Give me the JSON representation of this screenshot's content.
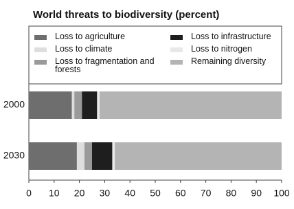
{
  "chart_data": {
    "type": "bar",
    "orientation": "horizontal",
    "stacked": true,
    "title": "World threats to biodiversity (percent)",
    "categories": [
      "2000",
      "2030"
    ],
    "series": [
      {
        "name": "Loss to agriculture",
        "color": "#6e6e6e",
        "values": [
          17,
          19
        ]
      },
      {
        "name": "Loss to climate",
        "color": "#dedede",
        "values": [
          1,
          3
        ]
      },
      {
        "name": "Loss to fragmentation and forests",
        "color": "#9a9a9a",
        "values": [
          3,
          3
        ]
      },
      {
        "name": "Loss to infrastructure",
        "color": "#1e1e1e",
        "values": [
          6,
          8
        ]
      },
      {
        "name": "Loss to nitrogen",
        "color": "#e8e8e8",
        "values": [
          1,
          1
        ]
      },
      {
        "name": "Remaining diversity",
        "color": "#b4b4b4",
        "values": [
          72,
          66
        ]
      }
    ],
    "xlim": [
      0,
      100
    ],
    "xticks": [
      0,
      10,
      20,
      30,
      40,
      50,
      60,
      70,
      80,
      90,
      100
    ]
  }
}
